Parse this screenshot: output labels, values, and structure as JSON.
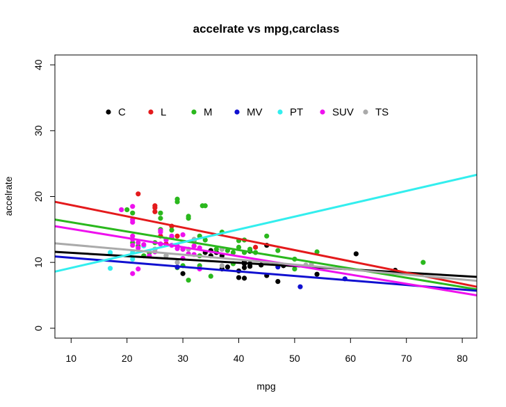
{
  "chart_data": {
    "type": "scatter",
    "title": "accelrate vs mpg,carclass",
    "xlabel": "mpg",
    "ylabel": "accelrate",
    "xlim": [
      7.1,
      82.6
    ],
    "ylim": [
      -1.5,
      41.5
    ],
    "xticks": [
      "10",
      "20",
      "30",
      "40",
      "50",
      "60",
      "70",
      "80"
    ],
    "yticks": [
      "0",
      "10",
      "20",
      "30",
      "40"
    ],
    "grid": false,
    "legend_position": "top-left",
    "series": [
      {
        "name": "C",
        "color": "#000000",
        "points": [
          [
            30,
            8.3
          ],
          [
            34,
            11.5
          ],
          [
            35,
            11
          ],
          [
            35,
            11.8
          ],
          [
            36,
            11.5
          ],
          [
            37,
            11
          ],
          [
            37,
            9
          ],
          [
            38,
            9.3
          ],
          [
            40,
            7.7
          ],
          [
            40,
            8.7
          ],
          [
            41,
            7.6
          ],
          [
            41,
            9.2
          ],
          [
            41,
            9.8
          ],
          [
            41,
            10.1
          ],
          [
            42,
            9.4
          ],
          [
            42,
            9.8
          ],
          [
            42,
            11.7
          ],
          [
            44,
            9.6
          ],
          [
            45,
            8.0
          ],
          [
            45,
            12.6
          ],
          [
            47,
            7.1
          ],
          [
            48,
            9.5
          ],
          [
            54,
            8.2
          ],
          [
            61,
            11.3
          ],
          [
            68,
            8.8
          ]
        ],
        "fit": [
          [
            7.1,
            11.6
          ],
          [
            82.6,
            7.8
          ]
        ]
      },
      {
        "name": "L",
        "color": "#e41a1c",
        "points": [
          [
            22,
            20.4
          ],
          [
            25,
            18.3
          ],
          [
            25,
            18.6
          ],
          [
            25,
            17.7
          ],
          [
            26,
            14
          ],
          [
            27,
            12.8
          ],
          [
            28,
            15.5
          ],
          [
            29,
            14
          ],
          [
            32,
            12.5
          ],
          [
            43,
            12.3
          ]
        ],
        "fit": [
          [
            7.1,
            19.2
          ],
          [
            82.6,
            6.3
          ]
        ]
      },
      {
        "name": "M",
        "color": "#2ab81d",
        "points": [
          [
            20,
            18
          ],
          [
            21,
            17.5
          ],
          [
            21,
            13
          ],
          [
            22,
            12.5
          ],
          [
            23,
            11
          ],
          [
            24,
            11.5
          ],
          [
            25,
            13
          ],
          [
            25,
            12
          ],
          [
            26,
            17.5
          ],
          [
            26,
            16.7
          ],
          [
            26,
            15
          ],
          [
            27,
            13.5
          ],
          [
            27,
            11
          ],
          [
            28,
            14.9
          ],
          [
            28,
            13.8
          ],
          [
            29,
            19.6
          ],
          [
            29,
            19.2
          ],
          [
            29,
            9.2
          ],
          [
            30,
            12
          ],
          [
            30,
            9.5
          ],
          [
            31,
            17
          ],
          [
            31,
            16.7
          ],
          [
            31,
            7.3
          ],
          [
            32,
            13.3
          ],
          [
            33,
            14
          ],
          [
            33,
            9.5
          ],
          [
            33,
            11
          ],
          [
            33.5,
            18.6
          ],
          [
            34,
            18.6
          ],
          [
            34,
            13.4
          ],
          [
            35,
            7.9
          ],
          [
            36,
            12
          ],
          [
            37,
            14.6
          ],
          [
            37,
            12
          ],
          [
            38,
            11.8
          ],
          [
            39,
            11.5
          ],
          [
            39,
            9.8
          ],
          [
            40,
            13.3
          ],
          [
            40,
            12.3
          ],
          [
            41,
            13.4
          ],
          [
            41,
            11.5
          ],
          [
            42,
            12
          ],
          [
            43,
            11.5
          ],
          [
            45,
            14
          ],
          [
            47,
            11.8
          ],
          [
            50,
            10.5
          ],
          [
            50,
            9.0
          ],
          [
            54,
            11.6
          ],
          [
            73,
            10
          ]
        ],
        "fit": [
          [
            7.1,
            16.5
          ],
          [
            82.6,
            5.9
          ]
        ]
      },
      {
        "name": "MV",
        "color": "#1010d0",
        "points": [
          [
            29,
            9.3
          ],
          [
            47,
            9.3
          ],
          [
            51,
            6.3
          ],
          [
            59,
            7.5
          ]
        ],
        "fit": [
          [
            7.1,
            10.9
          ],
          [
            82.6,
            5.7
          ]
        ]
      },
      {
        "name": "PT",
        "color": "#33eeee",
        "points": [
          [
            17,
            11.5
          ],
          [
            17,
            9.1
          ],
          [
            21,
            11.5
          ],
          [
            21,
            10.5
          ],
          [
            23,
            12.5
          ]
        ],
        "fit": [
          [
            7.1,
            8.6
          ],
          [
            82.6,
            23.3
          ]
        ]
      },
      {
        "name": "SUV",
        "color": "#ee11ee",
        "points": [
          [
            19,
            18
          ],
          [
            21,
            18.5
          ],
          [
            21,
            16.5
          ],
          [
            21,
            16.1
          ],
          [
            21,
            14
          ],
          [
            21,
            13.5
          ],
          [
            21,
            12.6
          ],
          [
            21,
            8.3
          ],
          [
            22,
            13
          ],
          [
            22,
            12.2
          ],
          [
            22,
            9
          ],
          [
            23,
            12.7
          ],
          [
            24,
            11
          ],
          [
            25,
            11.6
          ],
          [
            26,
            14.8
          ],
          [
            26,
            14.6
          ],
          [
            26,
            12.8
          ],
          [
            27,
            13.4
          ],
          [
            28,
            14
          ],
          [
            28,
            12.6
          ],
          [
            29,
            12.1
          ],
          [
            29,
            12.5
          ],
          [
            30,
            14.2
          ],
          [
            30,
            12
          ],
          [
            30,
            10.6
          ],
          [
            31,
            11.3
          ],
          [
            32,
            12.5
          ],
          [
            32,
            11.2
          ],
          [
            33,
            12.2
          ],
          [
            33,
            9
          ]
        ],
        "fit": [
          [
            7.1,
            15.5
          ],
          [
            82.6,
            5.0
          ]
        ]
      },
      {
        "name": "TS",
        "color": "#aaaaaa",
        "points": [
          [
            25,
            12
          ],
          [
            27,
            11
          ],
          [
            29,
            10
          ],
          [
            31,
            12
          ],
          [
            32,
            13.5
          ],
          [
            37,
            12
          ],
          [
            37,
            9.5
          ],
          [
            52,
            9.6
          ],
          [
            53,
            9.7
          ]
        ],
        "fit": [
          [
            7.1,
            12.9
          ],
          [
            82.6,
            7.2
          ]
        ]
      }
    ]
  }
}
